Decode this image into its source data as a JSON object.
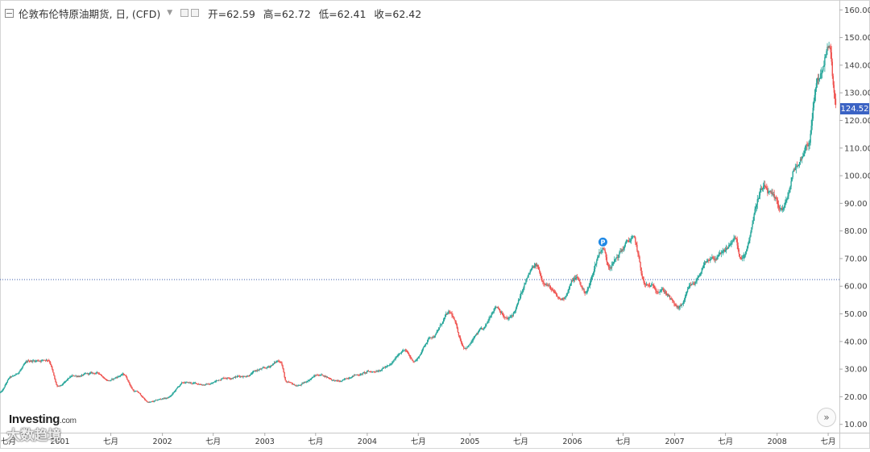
{
  "legend": {
    "symbol": "伦敦布伦特原油期货, 日, (CFD)",
    "caret": "▼",
    "open": "开=62.59",
    "high": "高=62.72",
    "low": "低=62.41",
    "close": "收=62.42"
  },
  "brand": {
    "name": "Investing",
    "suffix": ".com"
  },
  "watermark": "大数趋境",
  "scroll_button": "»",
  "last_price_label": "124.52",
  "colors": {
    "up": "#26a69a",
    "down": "#ef5350",
    "price_tag": "#3b63c4",
    "ref_line": "#3b5bab",
    "marker": "#1e88e5"
  },
  "chart_data": {
    "type": "candlestick",
    "title": "伦敦布伦特原油期货, 日, (CFD)",
    "xlabel": "",
    "ylabel": "",
    "ylim": [
      7,
      163
    ],
    "yticks": [
      10,
      20,
      30,
      40,
      50,
      60,
      70,
      80,
      90,
      100,
      110,
      120,
      130,
      140,
      150,
      160
    ],
    "ytick_labels": [
      "10.00",
      "20.00",
      "30.00",
      "40.00",
      "50.00",
      "60.00",
      "70.00",
      "80.00",
      "90.00",
      "100.00",
      "110.00",
      "120.00",
      "130.00",
      "140.00",
      "150.00",
      "160.00"
    ],
    "xlim": [
      "2000-06-01",
      "2008-08-10"
    ],
    "xticks": [
      {
        "date": "2000-07-01",
        "label": "七月"
      },
      {
        "date": "2001-01-01",
        "label": "2001"
      },
      {
        "date": "2001-07-01",
        "label": "七月"
      },
      {
        "date": "2002-01-01",
        "label": "2002"
      },
      {
        "date": "2002-07-01",
        "label": "七月"
      },
      {
        "date": "2003-01-01",
        "label": "2003"
      },
      {
        "date": "2003-07-01",
        "label": "七月"
      },
      {
        "date": "2004-01-01",
        "label": "2004"
      },
      {
        "date": "2004-07-01",
        "label": "七月"
      },
      {
        "date": "2005-01-01",
        "label": "2005"
      },
      {
        "date": "2005-07-01",
        "label": "七月"
      },
      {
        "date": "2006-01-01",
        "label": "2006"
      },
      {
        "date": "2006-07-01",
        "label": "七月"
      },
      {
        "date": "2007-01-01",
        "label": "2007"
      },
      {
        "date": "2007-07-01",
        "label": "七月"
      },
      {
        "date": "2008-01-01",
        "label": "2008"
      },
      {
        "date": "2008-07-01",
        "label": "七月"
      }
    ],
    "reference_line": 62.42,
    "last_price": 124.52,
    "marker": {
      "date": "2006-04-20",
      "value": 76,
      "label": "P"
    },
    "grid": false,
    "path_anchors": [
      [
        "2000-06-01",
        21.5
      ],
      [
        "2000-07-10",
        27
      ],
      [
        "2000-09-20",
        33
      ],
      [
        "2000-11-20",
        33.5
      ],
      [
        "2000-12-25",
        23.5
      ],
      [
        "2001-02-20",
        27.5
      ],
      [
        "2001-05-15",
        28.5
      ],
      [
        "2001-06-25",
        26
      ],
      [
        "2001-08-15",
        28
      ],
      [
        "2001-09-25",
        22
      ],
      [
        "2001-11-15",
        18
      ],
      [
        "2002-01-15",
        19.5
      ],
      [
        "2002-03-20",
        25
      ],
      [
        "2002-06-10",
        24.5
      ],
      [
        "2002-08-15",
        27
      ],
      [
        "2002-10-15",
        27.5
      ],
      [
        "2002-12-25",
        30
      ],
      [
        "2003-02-25",
        33
      ],
      [
        "2003-03-20",
        25
      ],
      [
        "2003-04-25",
        24
      ],
      [
        "2003-07-15",
        28
      ],
      [
        "2003-09-25",
        25.5
      ],
      [
        "2003-11-20",
        28
      ],
      [
        "2004-01-15",
        29
      ],
      [
        "2004-03-15",
        31
      ],
      [
        "2004-05-10",
        37
      ],
      [
        "2004-06-15",
        33
      ],
      [
        "2004-08-20",
        42
      ],
      [
        "2004-10-20",
        50
      ],
      [
        "2004-12-15",
        38
      ],
      [
        "2005-02-15",
        44
      ],
      [
        "2005-04-05",
        53
      ],
      [
        "2005-05-15",
        48
      ],
      [
        "2005-08-25",
        67
      ],
      [
        "2005-09-20",
        62
      ],
      [
        "2005-11-20",
        55
      ],
      [
        "2006-01-15",
        63
      ],
      [
        "2006-02-15",
        58
      ],
      [
        "2006-04-20",
        74
      ],
      [
        "2006-05-10",
        68
      ],
      [
        "2006-08-05",
        77
      ],
      [
        "2006-09-20",
        60
      ],
      [
        "2006-11-15",
        59
      ],
      [
        "2007-01-15",
        52
      ],
      [
        "2007-03-05",
        60
      ],
      [
        "2007-04-20",
        68
      ],
      [
        "2007-06-15",
        71
      ],
      [
        "2007-08-05",
        77
      ],
      [
        "2007-08-25",
        69
      ],
      [
        "2007-11-10",
        95
      ],
      [
        "2008-01-20",
        88
      ],
      [
        "2008-03-15",
        104
      ],
      [
        "2008-04-20",
        112
      ],
      [
        "2008-05-25",
        135
      ],
      [
        "2008-07-03",
        146
      ],
      [
        "2008-07-30",
        124.5
      ]
    ]
  }
}
